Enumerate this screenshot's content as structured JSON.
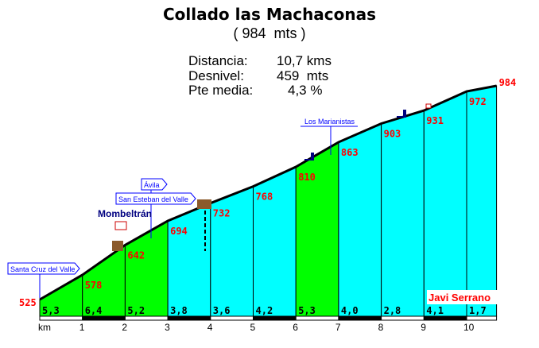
{
  "chart_data": {
    "type": "area",
    "title": "Collado las Machaconas",
    "subtitle": "( 984  mts )",
    "stats": [
      {
        "label": "Distancia:",
        "value": "10,7 kms"
      },
      {
        "label": "Desnivel:",
        "value": "459  mts"
      },
      {
        "label": "Pte media:",
        "value": "4,3 %"
      }
    ],
    "xlabel": "km",
    "x_ticks": [
      "1",
      "2",
      "3",
      "4",
      "5",
      "6",
      "7",
      "8",
      "9",
      "10"
    ],
    "xlim": [
      0,
      10.7
    ],
    "ylim": [
      525,
      984
    ],
    "km": [
      0,
      1,
      2,
      3,
      4,
      5,
      6,
      7,
      8,
      9,
      10,
      10.7
    ],
    "elevation": [
      525,
      578,
      642,
      694,
      732,
      768,
      810,
      863,
      903,
      931,
      972,
      984
    ],
    "elevation_labels": [
      "525",
      "578",
      "642",
      "694",
      "732",
      "768",
      "810",
      "863",
      "903",
      "931",
      "972",
      "984"
    ],
    "grades": [
      "5,3",
      "6,4",
      "5,2",
      "3,8",
      "3,6",
      "4,2",
      "5,3",
      "4,0",
      "2,8",
      "4,1",
      "1,7"
    ],
    "colors": {
      "steep": "#00ff00",
      "moderate": "#00ffff",
      "label": "#ff0000",
      "sign": "#0000ff"
    },
    "places": [
      {
        "name": "Santa Cruz del Valle",
        "km": 0
      },
      {
        "name": "Mombeltrán",
        "km": 2.5
      },
      {
        "name": "San Esteban del Valle",
        "km": 2.75
      },
      {
        "name": "Ávila",
        "km": 2.75
      },
      {
        "name": "Los Marianistas",
        "km": 6.7
      }
    ],
    "author": "Javi Serrano"
  }
}
